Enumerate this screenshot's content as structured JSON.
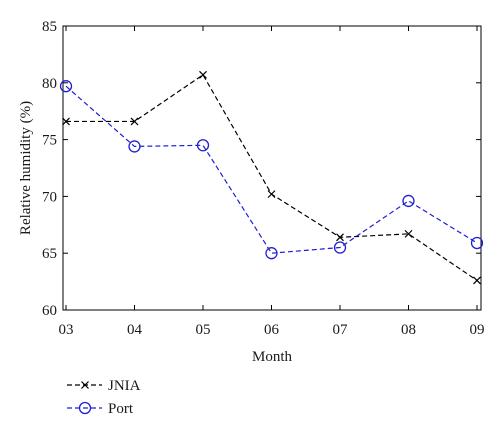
{
  "chart_data": {
    "type": "line",
    "title": "",
    "xlabel": "Month",
    "ylabel": "Relative humidity (%)",
    "categories": [
      "03",
      "04",
      "05",
      "06",
      "07",
      "08",
      "09"
    ],
    "ylim": [
      60,
      85
    ],
    "yticks": [
      60,
      65,
      70,
      75,
      80,
      85
    ],
    "grid": false,
    "legend_position": "bottom-left, below plot",
    "series": [
      {
        "name": "JNIA",
        "values": [
          76.6,
          76.6,
          80.7,
          70.2,
          66.4,
          66.7,
          62.6
        ],
        "color": "#000000",
        "marker": "x",
        "line_style": "dashed"
      },
      {
        "name": "Port",
        "values": [
          79.7,
          74.4,
          74.5,
          65.0,
          65.5,
          69.6,
          65.9
        ],
        "color": "#1f1fd0",
        "marker": "circle",
        "line_style": "dashed"
      }
    ]
  }
}
